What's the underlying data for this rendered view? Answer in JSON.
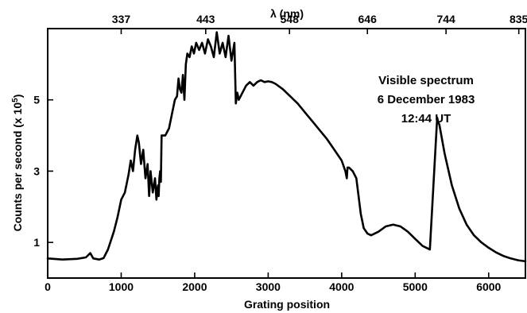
{
  "chart_data": {
    "type": "line",
    "title": "",
    "xlabel": "Grating position",
    "ylabel": "Counts per second (x 10",
    "ylabel_exponent": "5",
    "ylabel_close": ")",
    "top_axis_label": "λ (nm)",
    "xlim": [
      0,
      6500
    ],
    "ylim": [
      0,
      7.0
    ],
    "x_ticks": [
      0,
      1000,
      2000,
      3000,
      4000,
      5000,
      6000
    ],
    "x_tick_labels": [
      "0",
      "1000",
      "2000",
      "3000",
      "4000",
      "5000",
      "6000"
    ],
    "y_ticks": [
      1,
      3,
      5
    ],
    "y_tick_labels": [
      "1",
      "3",
      "5"
    ],
    "top_ticks": [
      1000,
      2150,
      3290,
      4350,
      5420,
      6410
    ],
    "top_tick_labels": [
      "337",
      "443",
      "548",
      "646",
      "744",
      "835"
    ],
    "annotations": [
      "Visible spectrum",
      "6 December 1983",
      "12:44 UT"
    ],
    "grid": false,
    "series": [
      {
        "x": [
          0,
          200,
          400,
          520,
          580,
          620,
          700,
          760,
          820,
          900,
          950,
          1000,
          1050,
          1100,
          1130,
          1160,
          1190,
          1220,
          1240,
          1270,
          1300,
          1330,
          1360,
          1380,
          1400,
          1430,
          1460,
          1480,
          1500,
          1510,
          1520,
          1530,
          1540,
          1550,
          1600,
          1650,
          1700,
          1730,
          1760,
          1780,
          1800,
          1820,
          1840,
          1860,
          1880,
          1900,
          1930,
          1960,
          1990,
          2020,
          2060,
          2100,
          2140,
          2180,
          2220,
          2260,
          2300,
          2340,
          2380,
          2420,
          2460,
          2500,
          2540,
          2560,
          2580,
          2600,
          2650,
          2700,
          2750,
          2800,
          2850,
          2900,
          2950,
          3000,
          3050,
          3100,
          3200,
          3300,
          3400,
          3500,
          3600,
          3700,
          3800,
          3900,
          4000,
          4050,
          4070,
          4080,
          4100,
          4150,
          4200,
          4230,
          4260,
          4300,
          4350,
          4400,
          4500,
          4600,
          4700,
          4800,
          4900,
          5000,
          5100,
          5200,
          5300,
          5310,
          5330,
          5400,
          5500,
          5600,
          5700,
          5800,
          5900,
          6000,
          6100,
          6200,
          6300,
          6400,
          6500
        ],
        "y": [
          0.55,
          0.52,
          0.54,
          0.58,
          0.7,
          0.55,
          0.52,
          0.56,
          0.8,
          1.3,
          1.7,
          2.2,
          2.4,
          2.9,
          3.3,
          3.0,
          3.6,
          4.0,
          3.8,
          3.2,
          3.6,
          2.8,
          3.2,
          2.3,
          3.0,
          2.4,
          2.8,
          2.2,
          2.6,
          2.3,
          2.8,
          3.0,
          2.7,
          4.0,
          4.0,
          4.2,
          4.7,
          5.0,
          5.1,
          5.6,
          5.3,
          5.2,
          5.7,
          5.0,
          6.0,
          6.3,
          6.2,
          6.5,
          6.3,
          6.6,
          6.4,
          6.6,
          6.3,
          6.7,
          6.5,
          6.2,
          6.9,
          6.3,
          6.6,
          6.2,
          6.8,
          6.1,
          6.6,
          4.9,
          5.2,
          5.0,
          5.2,
          5.4,
          5.5,
          5.4,
          5.5,
          5.55,
          5.5,
          5.52,
          5.5,
          5.45,
          5.3,
          5.1,
          4.9,
          4.65,
          4.4,
          4.15,
          3.9,
          3.6,
          3.3,
          3.0,
          2.8,
          3.1,
          3.1,
          3.0,
          2.8,
          2.3,
          1.8,
          1.4,
          1.25,
          1.2,
          1.3,
          1.45,
          1.5,
          1.45,
          1.3,
          1.1,
          0.9,
          0.8,
          4.5,
          4.4,
          4.3,
          3.5,
          2.6,
          1.95,
          1.5,
          1.2,
          1.0,
          0.85,
          0.72,
          0.62,
          0.55,
          0.5,
          0.47
        ]
      }
    ]
  }
}
